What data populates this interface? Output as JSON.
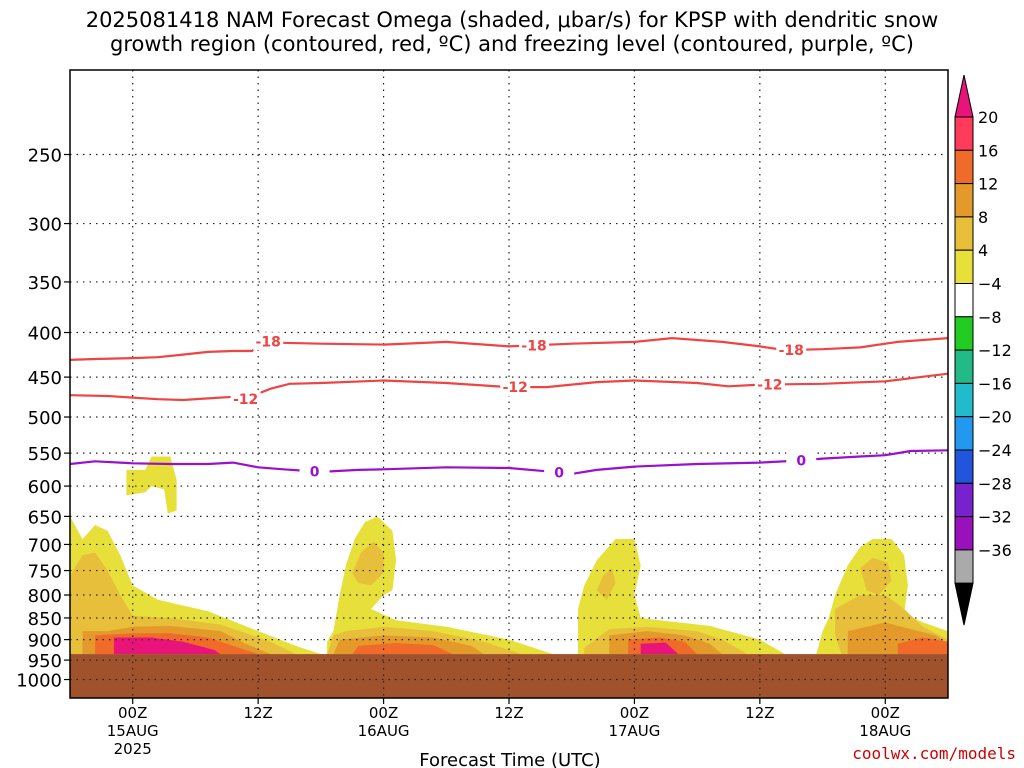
{
  "chart_data": {
    "type": "heatmap",
    "title_line1": "2025081418 NAM Forecast Omega (shaded, μbar/s) for KPSP with dendritic snow",
    "title_line2": "growth region (contoured, red, ºC) and freezing level (contoured, purple, ºC)",
    "xlabel": "Forecast Time (UTC)",
    "ylabel": "",
    "y_axis": {
      "scale": "log",
      "direction": "reversed",
      "range": [
        1050,
        200
      ],
      "ticks": [
        250,
        300,
        350,
        400,
        450,
        500,
        550,
        600,
        650,
        700,
        750,
        800,
        850,
        900,
        950,
        1000
      ]
    },
    "x_axis": {
      "range_hours": [
        -5,
        65
      ],
      "ticks": [
        {
          "hour": 0,
          "line1": "00Z",
          "line2": "15AUG",
          "line3": "2025"
        },
        {
          "hour": 10,
          "line1": "12Z",
          "line2": "",
          "line3": ""
        },
        {
          "hour": 20,
          "line1": "00Z",
          "line2": "16AUG",
          "line3": ""
        },
        {
          "hour": 30,
          "line1": "12Z",
          "line2": "",
          "line3": ""
        },
        {
          "hour": 40,
          "line1": "00Z",
          "line2": "17AUG",
          "line3": ""
        },
        {
          "hour": 50,
          "line1": "12Z",
          "line2": "",
          "line3": ""
        },
        {
          "hour": 60,
          "line1": "00Z",
          "line2": "18AUG",
          "line3": ""
        }
      ]
    },
    "grid": true,
    "ground_level_hpa": 935,
    "colorbar": {
      "labels": [
        "20",
        "16",
        "12",
        "8",
        "4",
        "−4",
        "−8",
        "−12",
        "−16",
        "−20",
        "−24",
        "−28",
        "−32",
        "−36"
      ],
      "colors": [
        "#ff3a5a",
        "#f06a2a",
        "#e49a2a",
        "#e8bf3a",
        "#e8e03a",
        "#ffffff",
        "#22cc22",
        "#22bb88",
        "#22bbcc",
        "#2299ee",
        "#2255dd",
        "#7722cc",
        "#9911bb",
        "#aaaaaa"
      ],
      "top_color": "#e8147a",
      "bottom_color": "#000000"
    },
    "contours": [
      {
        "name": "-18",
        "color": "#ee4444",
        "x": [
          -5,
          -3,
          0,
          2,
          4,
          6,
          8,
          9.5,
          10.5,
          12,
          15,
          20,
          25,
          30,
          35,
          40,
          43,
          47,
          50,
          52,
          55,
          58,
          61,
          65
        ],
        "y": [
          430,
          429,
          428,
          427,
          424,
          421,
          420,
          420,
          409,
          411,
          412,
          413,
          410,
          415,
          412,
          410,
          406,
          410,
          415,
          419,
          418,
          416,
          410,
          406
        ],
        "labels": [
          {
            "x": 10.8,
            "text": "-18"
          },
          {
            "x": 32,
            "text": "-18"
          },
          {
            "x": 52.5,
            "text": "-18"
          }
        ]
      },
      {
        "name": "-12",
        "color": "#ee4444",
        "x": [
          -5,
          -2,
          0,
          2,
          4,
          6,
          8,
          9,
          10,
          11,
          12.5,
          15,
          20,
          25,
          30,
          33,
          37,
          40,
          45,
          47.5,
          50,
          55,
          60,
          65
        ],
        "y": [
          472,
          473,
          475,
          477,
          478,
          476,
          474,
          477,
          470,
          464,
          458,
          457,
          454,
          457,
          462,
          462,
          456,
          454,
          457,
          461,
          459,
          458,
          455,
          446
        ],
        "labels": [
          {
            "x": 9,
            "text": "-12"
          },
          {
            "x": 30.5,
            "text": "-12"
          },
          {
            "x": 50.8,
            "text": "-12"
          }
        ]
      },
      {
        "name": "0",
        "color": "#9911cc",
        "x": [
          -5,
          -3,
          -1,
          0,
          3,
          6,
          8,
          10,
          12,
          15,
          18,
          20,
          25,
          30,
          33,
          35,
          37,
          40,
          45,
          50,
          53,
          55,
          58,
          60,
          62,
          65
        ],
        "y": [
          566,
          562,
          564,
          565,
          566,
          566,
          564,
          571,
          574,
          578,
          575,
          574,
          571,
          572,
          577,
          581,
          575,
          570,
          566,
          564,
          561,
          558,
          555,
          553,
          547,
          546
        ],
        "labels": [
          {
            "x": 14.5,
            "text": "0"
          },
          {
            "x": 34,
            "text": "0"
          },
          {
            "x": 53.3,
            "text": "0"
          }
        ]
      }
    ],
    "omega_regions": [
      {
        "level": 4,
        "poly": [
          [
            -5,
            650
          ],
          [
            -4,
            690
          ],
          [
            -3,
            665
          ],
          [
            -2,
            675
          ],
          [
            -1,
            720
          ],
          [
            0,
            780
          ],
          [
            2,
            810
          ],
          [
            6,
            835
          ],
          [
            10,
            880
          ],
          [
            13,
            915
          ],
          [
            15,
            935
          ],
          [
            -5,
            935
          ]
        ]
      },
      {
        "level": 4,
        "poly": [
          [
            -0.5,
            575
          ],
          [
            1,
            575
          ],
          [
            1.5,
            555
          ],
          [
            3,
            555
          ],
          [
            3.5,
            590
          ],
          [
            3.5,
            640
          ],
          [
            2.8,
            645
          ],
          [
            2.5,
            605
          ],
          [
            1.5,
            600
          ],
          [
            1,
            610
          ],
          [
            -0.5,
            615
          ]
        ]
      },
      {
        "level": 8,
        "poly": [
          [
            -5,
            760
          ],
          [
            -4,
            720
          ],
          [
            -3,
            715
          ],
          [
            -2,
            750
          ],
          [
            -1,
            800
          ],
          [
            0,
            845
          ],
          [
            3,
            850
          ],
          [
            7,
            865
          ],
          [
            11,
            905
          ],
          [
            13,
            935
          ],
          [
            -5,
            935
          ]
        ]
      },
      {
        "level": 12,
        "poly": [
          [
            -4,
            880
          ],
          [
            -2,
            880
          ],
          [
            0,
            870
          ],
          [
            3,
            868
          ],
          [
            7,
            880
          ],
          [
            9,
            910
          ],
          [
            11,
            935
          ],
          [
            -4,
            935
          ]
        ]
      },
      {
        "level": 16,
        "poly": [
          [
            -3,
            890
          ],
          [
            0,
            885
          ],
          [
            3,
            885
          ],
          [
            6,
            895
          ],
          [
            8,
            915
          ],
          [
            10,
            935
          ],
          [
            -3,
            935
          ]
        ]
      },
      {
        "level": 20,
        "poly": [
          [
            -1.5,
            895
          ],
          [
            1.5,
            895
          ],
          [
            4,
            905
          ],
          [
            6.5,
            925
          ],
          [
            7,
            935
          ],
          [
            -1.5,
            935
          ]
        ]
      },
      {
        "level": 4,
        "poly": [
          [
            16.5,
            800
          ],
          [
            17,
            740
          ],
          [
            17.7,
            690
          ],
          [
            18.5,
            660
          ],
          [
            19.5,
            650
          ],
          [
            20.7,
            675
          ],
          [
            21,
            730
          ],
          [
            20.7,
            790
          ],
          [
            20,
            800
          ],
          [
            19,
            830
          ],
          [
            21,
            855
          ],
          [
            25,
            870
          ],
          [
            30,
            900
          ],
          [
            33,
            930
          ],
          [
            33.5,
            935
          ],
          [
            16.5,
            935
          ],
          [
            15.5,
            935
          ],
          [
            15.5,
            905
          ],
          [
            16,
            880
          ]
        ]
      },
      {
        "level": 8,
        "poly": [
          [
            17.5,
            755
          ],
          [
            18.2,
            715
          ],
          [
            19.2,
            695
          ],
          [
            20,
            715
          ],
          [
            20,
            755
          ],
          [
            19,
            780
          ],
          [
            18,
            775
          ]
        ]
      },
      {
        "level": 8,
        "poly": [
          [
            16,
            890
          ],
          [
            17,
            880
          ],
          [
            20,
            870
          ],
          [
            24,
            880
          ],
          [
            28,
            905
          ],
          [
            31,
            935
          ],
          [
            15.5,
            935
          ]
        ]
      },
      {
        "level": 12,
        "poly": [
          [
            16.5,
            900
          ],
          [
            20,
            890
          ],
          [
            24,
            895
          ],
          [
            27,
            915
          ],
          [
            28,
            935
          ],
          [
            16,
            935
          ]
        ]
      },
      {
        "level": 16,
        "poly": [
          [
            18,
            915
          ],
          [
            21,
            908
          ],
          [
            24,
            913
          ],
          [
            25.5,
            935
          ],
          [
            17.5,
            935
          ]
        ]
      },
      {
        "level": 4,
        "poly": [
          [
            35.5,
            830
          ],
          [
            36,
            780
          ],
          [
            37,
            730
          ],
          [
            38.5,
            690
          ],
          [
            40,
            690
          ],
          [
            40.5,
            740
          ],
          [
            40,
            800
          ],
          [
            40.5,
            850
          ],
          [
            42,
            855
          ],
          [
            46,
            868
          ],
          [
            50,
            900
          ],
          [
            52,
            935
          ],
          [
            35.5,
            935
          ]
        ]
      },
      {
        "level": 8,
        "poly": [
          [
            37,
            790
          ],
          [
            37.5,
            760
          ],
          [
            38.2,
            745
          ],
          [
            38.5,
            775
          ],
          [
            37.8,
            810
          ]
        ]
      },
      {
        "level": 8,
        "poly": [
          [
            36,
            920
          ],
          [
            38,
            875
          ],
          [
            41,
            870
          ],
          [
            45,
            880
          ],
          [
            47,
            900
          ],
          [
            49,
            935
          ],
          [
            36,
            935
          ]
        ]
      },
      {
        "level": 12,
        "poly": [
          [
            38,
            890
          ],
          [
            41,
            880
          ],
          [
            44,
            890
          ],
          [
            46,
            910
          ],
          [
            47,
            935
          ],
          [
            38,
            935
          ]
        ]
      },
      {
        "level": 16,
        "poly": [
          [
            39.5,
            900
          ],
          [
            42,
            895
          ],
          [
            44,
            905
          ],
          [
            45,
            935
          ],
          [
            39.5,
            935
          ]
        ]
      },
      {
        "level": 20,
        "poly": [
          [
            40.5,
            910
          ],
          [
            42.5,
            907
          ],
          [
            43.5,
            935
          ],
          [
            40.5,
            935
          ]
        ]
      },
      {
        "level": 4,
        "poly": [
          [
            55,
            880
          ],
          [
            55.5,
            850
          ],
          [
            56,
            800
          ],
          [
            57,
            740
          ],
          [
            58,
            705
          ],
          [
            59,
            690
          ],
          [
            60.5,
            690
          ],
          [
            61.5,
            720
          ],
          [
            61.8,
            780
          ],
          [
            61.5,
            840
          ],
          [
            63,
            860
          ],
          [
            65,
            880
          ],
          [
            65,
            935
          ],
          [
            54.5,
            935
          ]
        ]
      },
      {
        "level": 8,
        "poly": [
          [
            58,
            745
          ],
          [
            59,
            725
          ],
          [
            60.2,
            735
          ],
          [
            60.5,
            770
          ],
          [
            59.5,
            800
          ],
          [
            58.5,
            790
          ]
        ]
      },
      {
        "level": 8,
        "poly": [
          [
            56,
            830
          ],
          [
            58,
            800
          ],
          [
            60,
            800
          ],
          [
            61.5,
            830
          ],
          [
            63,
            870
          ],
          [
            65,
            900
          ],
          [
            65,
            935
          ],
          [
            56.5,
            935
          ],
          [
            56,
            890
          ]
        ]
      },
      {
        "level": 12,
        "poly": [
          [
            57,
            880
          ],
          [
            60,
            860
          ],
          [
            62,
            875
          ],
          [
            64,
            890
          ],
          [
            65,
            910
          ],
          [
            65,
            935
          ],
          [
            57,
            935
          ]
        ]
      },
      {
        "level": 16,
        "poly": [
          [
            61,
            910
          ],
          [
            63,
            895
          ],
          [
            65,
            905
          ],
          [
            65,
            935
          ],
          [
            61,
            935
          ]
        ]
      }
    ]
  },
  "credit": "coolwx.com/models"
}
